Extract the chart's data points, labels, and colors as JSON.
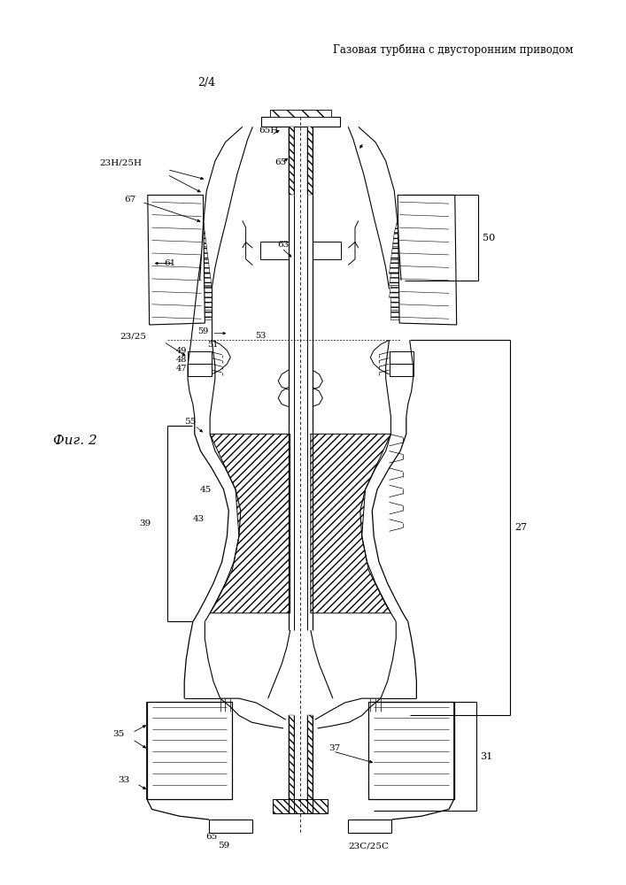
{
  "title": "Газовая турбина с двусторонним приводом",
  "page_label": "2/4",
  "fig_label": "Фиг. 2",
  "bg_color": "#ffffff"
}
